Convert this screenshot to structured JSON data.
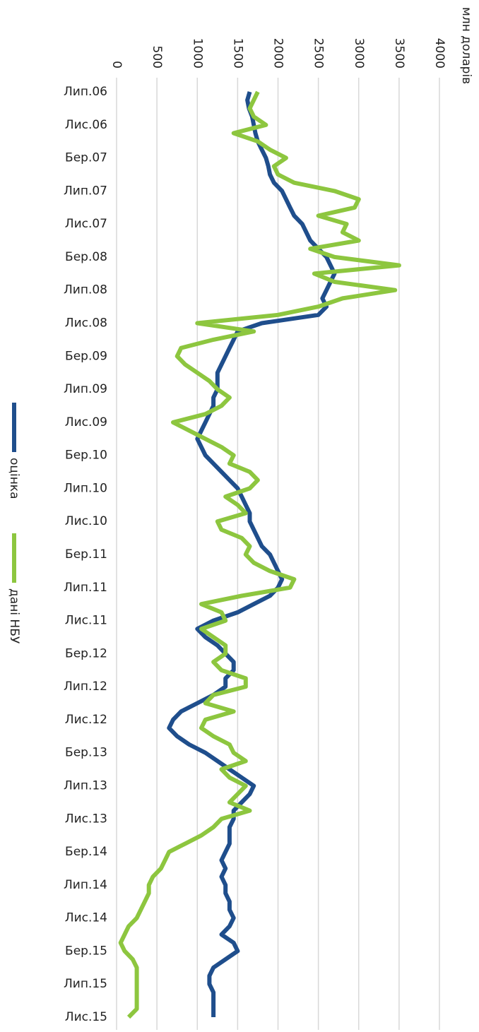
{
  "chart_data": {
    "type": "line",
    "y_label": "млн доларів",
    "categories": [
      "Лип.06",
      null,
      null,
      null,
      "Лис.06",
      null,
      null,
      null,
      "Бер.07",
      null,
      null,
      null,
      "Лип.07",
      null,
      null,
      null,
      "Лис.07",
      null,
      null,
      null,
      "Бер.08",
      null,
      null,
      null,
      "Лип.08",
      null,
      null,
      null,
      "Лис.08",
      null,
      null,
      null,
      "Бер.09",
      null,
      null,
      null,
      "Лип.09",
      null,
      null,
      null,
      "Лис.09",
      null,
      null,
      null,
      "Бер.10",
      null,
      null,
      null,
      "Лип.10",
      null,
      null,
      null,
      "Лис.10",
      null,
      null,
      null,
      "Бер.11",
      null,
      null,
      null,
      "Лип.11",
      null,
      null,
      null,
      "Лис.11",
      null,
      null,
      null,
      "Бер.12",
      null,
      null,
      null,
      "Лип.12",
      null,
      null,
      null,
      "Лис.12",
      null,
      null,
      null,
      "Бер.13",
      null,
      null,
      null,
      "Лип.13",
      null,
      null,
      null,
      "Лис.13",
      null,
      null,
      null,
      "Бер.14",
      null,
      null,
      null,
      "Лип.14",
      null,
      null,
      null,
      "Лис.14",
      null,
      null,
      null,
      "Бер.15",
      null,
      null,
      null,
      "Лип.15",
      null,
      null,
      null,
      "Лис.15"
    ],
    "series": [
      {
        "name": "оцінка",
        "color": "#1f4e8c",
        "values": [
          1650,
          1620,
          1640,
          1680,
          1700,
          1720,
          1750,
          1800,
          1850,
          1880,
          1900,
          1950,
          2050,
          2100,
          2150,
          2200,
          2300,
          2350,
          2400,
          2500,
          2600,
          2650,
          2700,
          2650,
          2600,
          2550,
          2600,
          2500,
          1800,
          1500,
          1450,
          1400,
          1350,
          1300,
          1250,
          1250,
          1250,
          1200,
          1200,
          1150,
          1100,
          1050,
          1000,
          1050,
          1100,
          1200,
          1300,
          1400,
          1500,
          1550,
          1600,
          1650,
          1650,
          1700,
          1750,
          1800,
          1900,
          1950,
          2000,
          2050,
          2000,
          1900,
          1700,
          1500,
          1200,
          1000,
          1100,
          1250,
          1350,
          1450,
          1450,
          1350,
          1350,
          1200,
          1000,
          800,
          700,
          650,
          750,
          900,
          1100,
          1250,
          1400,
          1550,
          1700,
          1650,
          1550,
          1450,
          1450,
          1400,
          1400,
          1400,
          1350,
          1300,
          1350,
          1300,
          1350,
          1350,
          1400,
          1400,
          1450,
          1400,
          1300,
          1450,
          1500,
          1350,
          1200,
          1150,
          1150,
          1200,
          1200,
          1200,
          1200
        ]
      },
      {
        "name": "дані НБУ",
        "color": "#8dc63f",
        "values": [
          1750,
          1700,
          1650,
          1700,
          1850,
          1450,
          1750,
          1900,
          2100,
          1950,
          2000,
          2200,
          2700,
          3000,
          2950,
          2500,
          2850,
          2800,
          3000,
          2400,
          2700,
          3500,
          2450,
          2700,
          3450,
          2800,
          2500,
          2000,
          1000,
          1700,
          1200,
          800,
          750,
          850,
          1000,
          1150,
          1250,
          1400,
          1300,
          1100,
          700,
          900,
          1100,
          1300,
          1450,
          1400,
          1650,
          1750,
          1650,
          1350,
          1500,
          1600,
          1250,
          1300,
          1550,
          1650,
          1600,
          1700,
          1900,
          2200,
          2150,
          1550,
          1050,
          1300,
          1350,
          1050,
          1200,
          1350,
          1350,
          1200,
          1300,
          1600,
          1600,
          1200,
          1100,
          1450,
          1100,
          1050,
          1200,
          1400,
          1450,
          1600,
          1300,
          1400,
          1600,
          1500,
          1400,
          1650,
          1300,
          1200,
          1050,
          850,
          650,
          600,
          550,
          450,
          400,
          400,
          350,
          300,
          250,
          150,
          100,
          50,
          100,
          200,
          250,
          250,
          250,
          250,
          250,
          250,
          150
        ]
      }
    ],
    "ylim": [
      0,
      4000
    ],
    "yticks": [
      0,
      500,
      1000,
      1500,
      2000,
      2500,
      3000,
      3500,
      4000
    ],
    "grid": true
  }
}
